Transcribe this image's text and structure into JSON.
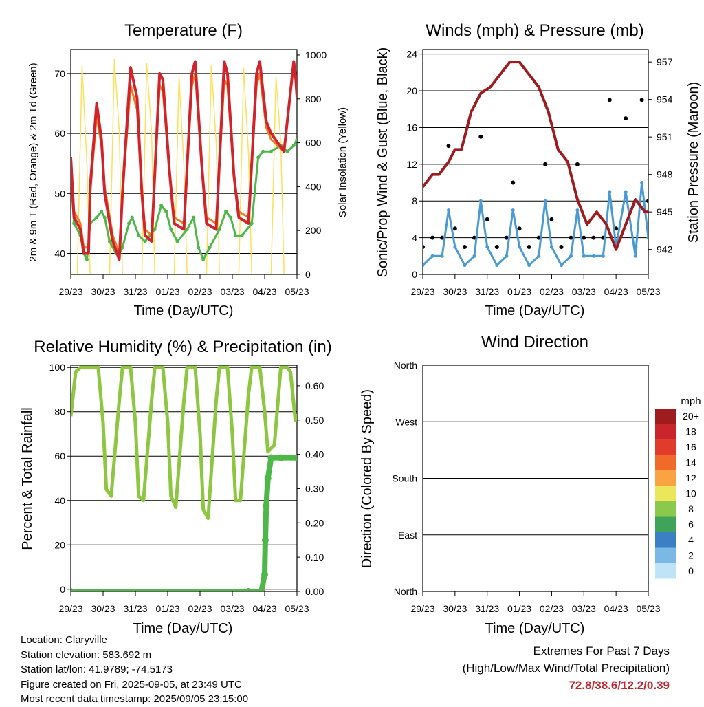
{
  "charts": {
    "temperature": {
      "title": "Temperature (F)",
      "ylabel_left": "2m & 9m T (Red, Orange) & 2m Td (Green)",
      "ylabel_right": "Solar Insolation (Yellow)",
      "xlabel": "Time (Day/UTC)"
    },
    "winds": {
      "title": "Winds (mph) & Pressure (mb)",
      "ylabel_left": "Sonic/Prop Wind & Gust (Blue, Black)",
      "ylabel_right": "Station Pressure (Maroon)",
      "xlabel": "Time (Day/UTC)"
    },
    "humidity": {
      "title": "Relative Humidity (%) & Precipitation (in)",
      "ylabel_left": "Percent & Total Rainfall",
      "xlabel": "Time (Day/UTC)"
    },
    "direction": {
      "title": "Wind Direction",
      "ylabel_left": "Direction (Colored By Speed)",
      "xlabel": "Time (Day/UTC)"
    }
  },
  "chart_data": [
    {
      "type": "line",
      "title": "Temperature (F)",
      "xlabel": "Time (Day/UTC)",
      "ylabel": "2m & 9m T (Red, Orange) & 2m Td (Green)",
      "ylabel_right": "Solar Insolation (Yellow)",
      "x_ticks": [
        "29/23",
        "30/23",
        "31/23",
        "01/23",
        "02/23",
        "03/23",
        "04/23",
        "05/23"
      ],
      "xlim": [
        0,
        7
      ],
      "ylim": [
        36.5,
        74
      ],
      "y_ticks": [
        40,
        50,
        60,
        70
      ],
      "ylim_right": [
        0,
        1025
      ],
      "y_ticks_right": [
        0,
        200,
        400,
        600,
        800,
        1000
      ],
      "series": [
        {
          "color": "#d2232a",
          "x": [
            0,
            0.1,
            0.3,
            0.4,
            0.55,
            0.6,
            0.8,
            0.95,
            1.05,
            1.3,
            1.5,
            1.6,
            1.85,
            2.05,
            2.2,
            2.3,
            2.5,
            2.75,
            2.85,
            3.05,
            3.2,
            3.5,
            3.75,
            3.85,
            4.05,
            4.2,
            4.5,
            4.75,
            4.85,
            5.05,
            5.2,
            5.5,
            5.75,
            5.85,
            6.05,
            6.2,
            6.6,
            6.9,
            6.95,
            7.0
          ],
          "y": [
            56,
            46,
            44,
            40,
            40,
            51,
            65,
            59,
            50,
            42,
            39,
            50,
            71,
            66,
            50,
            43,
            42,
            70,
            69,
            54,
            45,
            44,
            70,
            72,
            55,
            45,
            44,
            72,
            70,
            53,
            46,
            45,
            70,
            72,
            62,
            60,
            57,
            72,
            70,
            66
          ]
        },
        {
          "color": "#f07a20",
          "x": [
            0,
            0.1,
            0.3,
            0.4,
            0.55,
            0.6,
            0.8,
            0.95,
            1.05,
            1.3,
            1.5,
            1.6,
            1.85,
            2.05,
            2.2,
            2.3,
            2.5,
            2.75,
            2.85,
            3.05,
            3.2,
            3.5,
            3.75,
            3.85,
            4.05,
            4.2,
            4.5,
            4.75,
            4.85,
            5.05,
            5.2,
            5.5,
            5.75,
            5.85,
            6.05,
            6.2,
            6.6
          ],
          "y": [
            55,
            47,
            45,
            41,
            41,
            50,
            63,
            58,
            51,
            43,
            40,
            50,
            68,
            64,
            51,
            44,
            43,
            68,
            67,
            54,
            46,
            45,
            68,
            70,
            55,
            46,
            45,
            69,
            68,
            53,
            47,
            46,
            68,
            70,
            61,
            59,
            57
          ]
        },
        {
          "color": "#4db748",
          "x": [
            0,
            0.1,
            0.3,
            0.4,
            0.5,
            0.6,
            0.8,
            0.95,
            1.05,
            1.2,
            1.4,
            1.5,
            1.6,
            1.8,
            1.9,
            2.1,
            2.3,
            2.6,
            2.8,
            2.95,
            3.1,
            3.3,
            3.6,
            3.8,
            3.95,
            4.1,
            4.3,
            4.6,
            4.8,
            4.95,
            5.1,
            5.3,
            5.6,
            5.8,
            5.95,
            6.2,
            6.5,
            6.7,
            6.9,
            7.0
          ],
          "y": [
            53,
            45,
            43,
            40,
            39,
            45,
            46,
            47,
            46,
            42,
            40,
            40,
            41,
            45,
            46,
            43,
            42,
            44,
            48,
            47,
            44,
            42,
            44,
            46,
            41,
            39,
            41,
            44,
            47,
            46,
            43,
            43,
            45,
            56,
            57,
            57,
            58,
            57,
            58,
            59
          ]
        },
        {
          "color": "#fde05a",
          "x": [
            0,
            0.2,
            0.35,
            0.5,
            0.6,
            0.75,
            1,
            1.2,
            1.35,
            1.5,
            1.6,
            1.75,
            2,
            2.2,
            2.35,
            2.5,
            2.6,
            2.75,
            3,
            3.2,
            3.35,
            3.5,
            3.6,
            3.75,
            4,
            4.2,
            4.35,
            4.5,
            4.6,
            4.75,
            5,
            5.2,
            5.35,
            5.5,
            5.6,
            5.75,
            6,
            6.2,
            6.35,
            6.5,
            6.6,
            6.75,
            7
          ],
          "y": [
            0,
            0,
            950,
            500,
            0,
            0,
            0,
            0,
            980,
            650,
            0,
            0,
            0,
            0,
            960,
            650,
            0,
            0,
            0,
            0,
            900,
            500,
            0,
            0,
            0,
            0,
            950,
            600,
            0,
            0,
            0,
            0,
            940,
            550,
            0,
            0,
            0,
            0,
            900,
            600,
            0,
            0,
            0
          ]
        }
      ]
    },
    {
      "type": "line",
      "title": "Winds (mph) & Pressure (mb)",
      "xlabel": "Time (Day/UTC)",
      "ylabel": "Sonic/Prop Wind & Gust (Blue, Black)",
      "ylabel_right": "Station Pressure (Maroon)",
      "x_ticks": [
        "29/23",
        "30/23",
        "31/23",
        "01/23",
        "02/23",
        "03/23",
        "04/23",
        "05/23"
      ],
      "xlim": [
        0,
        7
      ],
      "ylim": [
        0,
        24.5
      ],
      "y_ticks": [
        0,
        4,
        8,
        12,
        16,
        20,
        24
      ],
      "ylim_right": [
        940,
        958
      ],
      "y_ticks_right": [
        942,
        945,
        948,
        951,
        954,
        957
      ],
      "series": [
        {
          "color": "#9e1b1e",
          "x": [
            0,
            0.3,
            0.5,
            0.8,
            1.0,
            1.2,
            1.5,
            1.8,
            2.1,
            2.4,
            2.7,
            3.0,
            3.3,
            3.6,
            3.9,
            4.2,
            4.5,
            4.8,
            5.1,
            5.4,
            5.7,
            6.0,
            6.3,
            6.6,
            6.9,
            7.0
          ],
          "y": [
            947,
            948,
            948,
            949,
            950,
            950,
            953,
            954.5,
            955,
            956,
            957,
            957,
            956,
            955,
            953,
            950,
            949,
            946,
            944,
            945,
            944,
            942,
            944,
            946,
            945,
            945
          ]
        },
        {
          "color": "#4a9bd4",
          "x": [
            0,
            0.3,
            0.6,
            0.8,
            1.0,
            1.3,
            1.6,
            1.8,
            2.0,
            2.3,
            2.6,
            2.8,
            3.0,
            3.3,
            3.6,
            3.8,
            4.0,
            4.3,
            4.6,
            4.8,
            5.0,
            5.3,
            5.6,
            5.8,
            6.0,
            6.3,
            6.6,
            6.8,
            7.0
          ],
          "y": [
            1,
            2,
            2,
            7,
            3,
            1,
            2,
            8,
            3,
            1,
            2,
            7,
            3,
            1,
            2,
            8,
            3,
            1,
            2,
            7,
            2,
            2,
            2,
            9,
            3,
            9,
            2,
            10,
            4
          ]
        },
        {
          "color": "#000000",
          "x": [
            0,
            0.3,
            0.6,
            0.8,
            1.0,
            1.3,
            1.6,
            1.8,
            2.0,
            2.3,
            2.6,
            2.8,
            3.0,
            3.3,
            3.6,
            3.8,
            4.0,
            4.3,
            4.6,
            4.8,
            5.0,
            5.3,
            5.6,
            5.8,
            6.0,
            6.3,
            6.6,
            6.8,
            7.0
          ],
          "y": [
            3,
            4,
            4,
            14,
            5,
            3,
            4,
            15,
            6,
            3,
            4,
            10,
            5,
            3,
            4,
            12,
            6,
            3,
            4,
            12,
            4,
            4,
            4,
            19,
            5,
            17,
            3,
            19,
            8
          ]
        }
      ]
    },
    {
      "type": "line",
      "title": "Relative Humidity (%) & Precipitation (in)",
      "xlabel": "Time (Day/UTC)",
      "ylabel": "Percent & Total Rainfall",
      "x_ticks": [
        "29/23",
        "30/23",
        "31/23",
        "01/23",
        "02/23",
        "03/23",
        "04/23",
        "05/23"
      ],
      "xlim": [
        0,
        7
      ],
      "ylim": [
        -1,
        101
      ],
      "y_ticks": [
        0,
        20,
        40,
        60,
        80,
        100
      ],
      "ylim_right": [
        0,
        0.66
      ],
      "y_ticks_right": [
        0.0,
        0.1,
        0.2,
        0.3,
        0.4,
        0.5,
        0.6
      ],
      "series": [
        {
          "color": "#8dc63f",
          "x": [
            0,
            0.15,
            0.3,
            0.5,
            0.6,
            0.85,
            1.0,
            1.1,
            1.25,
            1.5,
            1.6,
            1.85,
            2.0,
            2.1,
            2.25,
            2.5,
            2.6,
            2.85,
            3.0,
            3.1,
            3.25,
            3.5,
            3.6,
            3.85,
            4.0,
            4.1,
            4.25,
            4.5,
            4.6,
            4.85,
            5.0,
            5.1,
            5.25,
            5.5,
            5.6,
            5.85,
            6.0,
            6.1,
            6.3,
            6.5,
            6.7,
            6.8,
            6.95,
            7.0
          ],
          "y": [
            78,
            98,
            100,
            100,
            100,
            100,
            75,
            45,
            42,
            85,
            100,
            100,
            75,
            42,
            40,
            85,
            100,
            100,
            75,
            42,
            37,
            85,
            100,
            100,
            70,
            36,
            32,
            85,
            100,
            100,
            70,
            40,
            40,
            88,
            100,
            100,
            80,
            62,
            65,
            100,
            100,
            98,
            76,
            79
          ]
        },
        {
          "color": "#4db748",
          "x": [
            0,
            5.5,
            5.9,
            6.0,
            6.02,
            6.05,
            6.1,
            6.2,
            6.5,
            7.0
          ],
          "y": [
            0,
            0,
            0,
            0.05,
            0.15,
            0.25,
            0.33,
            0.39,
            0.39,
            0.39
          ]
        }
      ]
    },
    {
      "type": "scatter",
      "title": "Wind Direction",
      "xlabel": "Time (Day/UTC)",
      "ylabel": "Direction (Colored By Speed)",
      "x_ticks": [
        "29/23",
        "30/23",
        "31/23",
        "01/23",
        "02/23",
        "03/23",
        "04/23",
        "05/23"
      ],
      "xlim": [
        0,
        7
      ],
      "y_ticks": [
        "North",
        "East",
        "South",
        "West",
        "North"
      ],
      "colorbar_unit": "mph",
      "colorbar_labels": [
        "20+",
        "18",
        "16",
        "14",
        "12",
        "10",
        "8",
        "6",
        "4",
        "2",
        "0"
      ],
      "colorbar_colors": [
        "#9e1b1e",
        "#c9252b",
        "#e03b2b",
        "#f06a2a",
        "#f9a342",
        "#ece65a",
        "#8cc84b",
        "#3fa35a",
        "#3b7fc4",
        "#7ab8e6",
        "#bfe4f7"
      ]
    }
  ],
  "info": {
    "location": "Location: Claryville",
    "elevation": "Station elevation: 583.692 m",
    "latlon": "Station lat/lon: 41.9789; -74.5173",
    "created": "Figure created on Fri, 2025-09-05, at 23:49 UTC",
    "recent": "Most recent data timestamp: 2025/09/05 23:15:00"
  },
  "extremes": {
    "title": "Extremes For Past 7 Days",
    "subtitle": "(High/Low/Max Wind/Total Precipitation)",
    "values": "72.8/38.6/12.2/0.39"
  }
}
